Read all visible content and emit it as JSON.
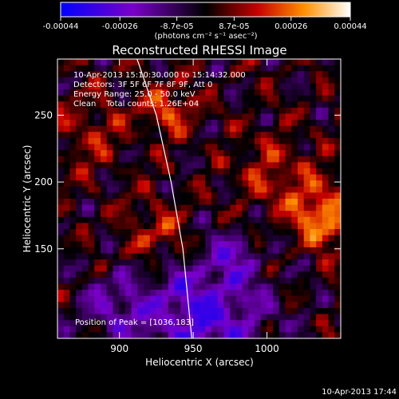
{
  "chart_data": {
    "type": "heatmap",
    "title": "Reconstructed RHESSI Image",
    "xlabel": "Heliocentric X (arcsec)",
    "ylabel": "Heliocentric Y (arcsec)",
    "xlim": [
      858,
      1050
    ],
    "ylim": [
      83,
      292
    ],
    "x_ticks": [
      900,
      950,
      1000
    ],
    "y_ticks": [
      150,
      200,
      250
    ],
    "colorbar": {
      "min": -0.00044,
      "max": 0.00044,
      "tick_values": [
        -0.00044,
        -0.00026,
        -8.7e-05,
        8.7e-05,
        0.00026,
        0.00044
      ],
      "tick_labels": [
        "-0.00044",
        "-0.00026",
        "-8.7e-05",
        "8.7e-05",
        "0.00026",
        "0.00044"
      ],
      "units_label": "(photons cm⁻² s⁻¹ asec⁻²)"
    },
    "annotations": [
      "10-Apr-2013 15:10:30.000 to 15:14:32.000",
      "Detectors: 3F 5F 6F 7F 8F 9F, Att 0",
      "Energy Range: 25.0 - 50.0 keV",
      "Clean    Total counts: 1.26E+04"
    ],
    "peak_label": "Position of Peak = [1036,183]",
    "peak": [
      1036,
      183
    ],
    "limb_points": [
      [
        912,
        292
      ],
      [
        925,
        250
      ],
      [
        935,
        200
      ],
      [
        943,
        150
      ],
      [
        949,
        83
      ]
    ],
    "timestamp": "10-Apr-2013 17:44",
    "grid": false
  }
}
